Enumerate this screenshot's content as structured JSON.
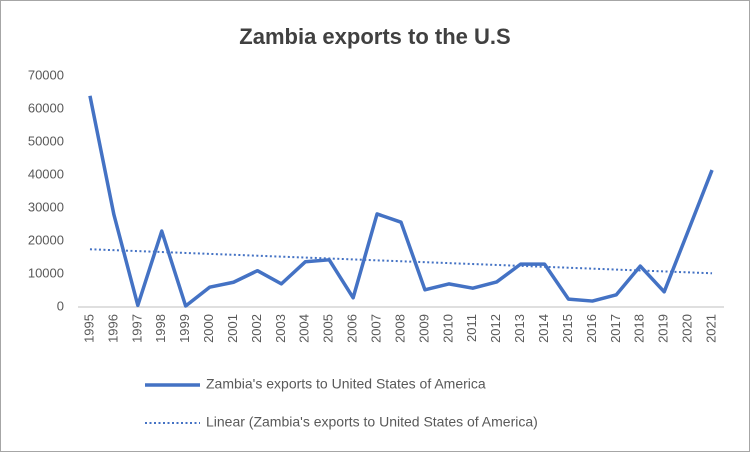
{
  "chart_data": {
    "type": "line",
    "title": "Zambia exports to the U.S",
    "categories": [
      "1995",
      "1996",
      "1997",
      "1998",
      "1999",
      "2000",
      "2001",
      "2002",
      "2003",
      "2004",
      "2005",
      "2006",
      "2007",
      "2008",
      "2009",
      "2010",
      "2011",
      "2012",
      "2013",
      "2014",
      "2015",
      "2016",
      "2017",
      "2018",
      "2019",
      "2020",
      "2021"
    ],
    "series": [
      {
        "name": "Zambia's exports to United States of America",
        "color": "#4472c4",
        "dash": "solid",
        "values": [
          64000,
          28000,
          500,
          23000,
          300,
          6000,
          7500,
          11000,
          7000,
          13700,
          14300,
          2800,
          28200,
          25700,
          5200,
          7000,
          5700,
          7600,
          13000,
          13000,
          2400,
          1800,
          3700,
          12400,
          4600,
          23000,
          41500
        ]
      },
      {
        "name": "Linear (Zambia's exports to United States of America)",
        "color": "#4472c4",
        "dash": "dotted",
        "values": [
          17500,
          17220,
          16940,
          16660,
          16380,
          16100,
          15820,
          15540,
          15260,
          14980,
          14700,
          14420,
          14140,
          13860,
          13580,
          13300,
          13020,
          12740,
          12460,
          12180,
          11900,
          11620,
          11340,
          11060,
          10780,
          10500,
          10220
        ]
      }
    ],
    "ylim": [
      0,
      70000
    ],
    "yticks": [
      0,
      10000,
      20000,
      30000,
      40000,
      50000,
      60000,
      70000
    ],
    "grid": false,
    "legend": "bottom"
  }
}
